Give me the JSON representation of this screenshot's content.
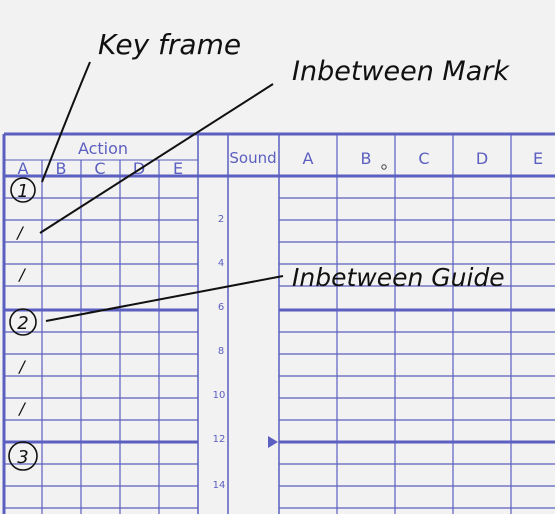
{
  "annotations": {
    "key_frame": "Key frame",
    "inbetween_mark": "Inbetween Mark",
    "inbetween_guide": "Inbetween Guide"
  },
  "action": {
    "title": "Action",
    "columns": [
      "A",
      "B",
      "C",
      "D",
      "E"
    ]
  },
  "sound": {
    "title": "Sound"
  },
  "cells": {
    "columns": [
      "A",
      "B",
      "C",
      "D",
      "E"
    ]
  },
  "frame_numbers": [
    "2",
    "4",
    "6",
    "8",
    "10",
    "12",
    "14"
  ],
  "keys": [
    "1",
    "2",
    "3"
  ],
  "inbetween_marks": [
    "/",
    "/",
    "/",
    "/"
  ],
  "colors": {
    "grid": "#5b5fc0",
    "ink": "#111111",
    "background": "#f2f2f2"
  }
}
